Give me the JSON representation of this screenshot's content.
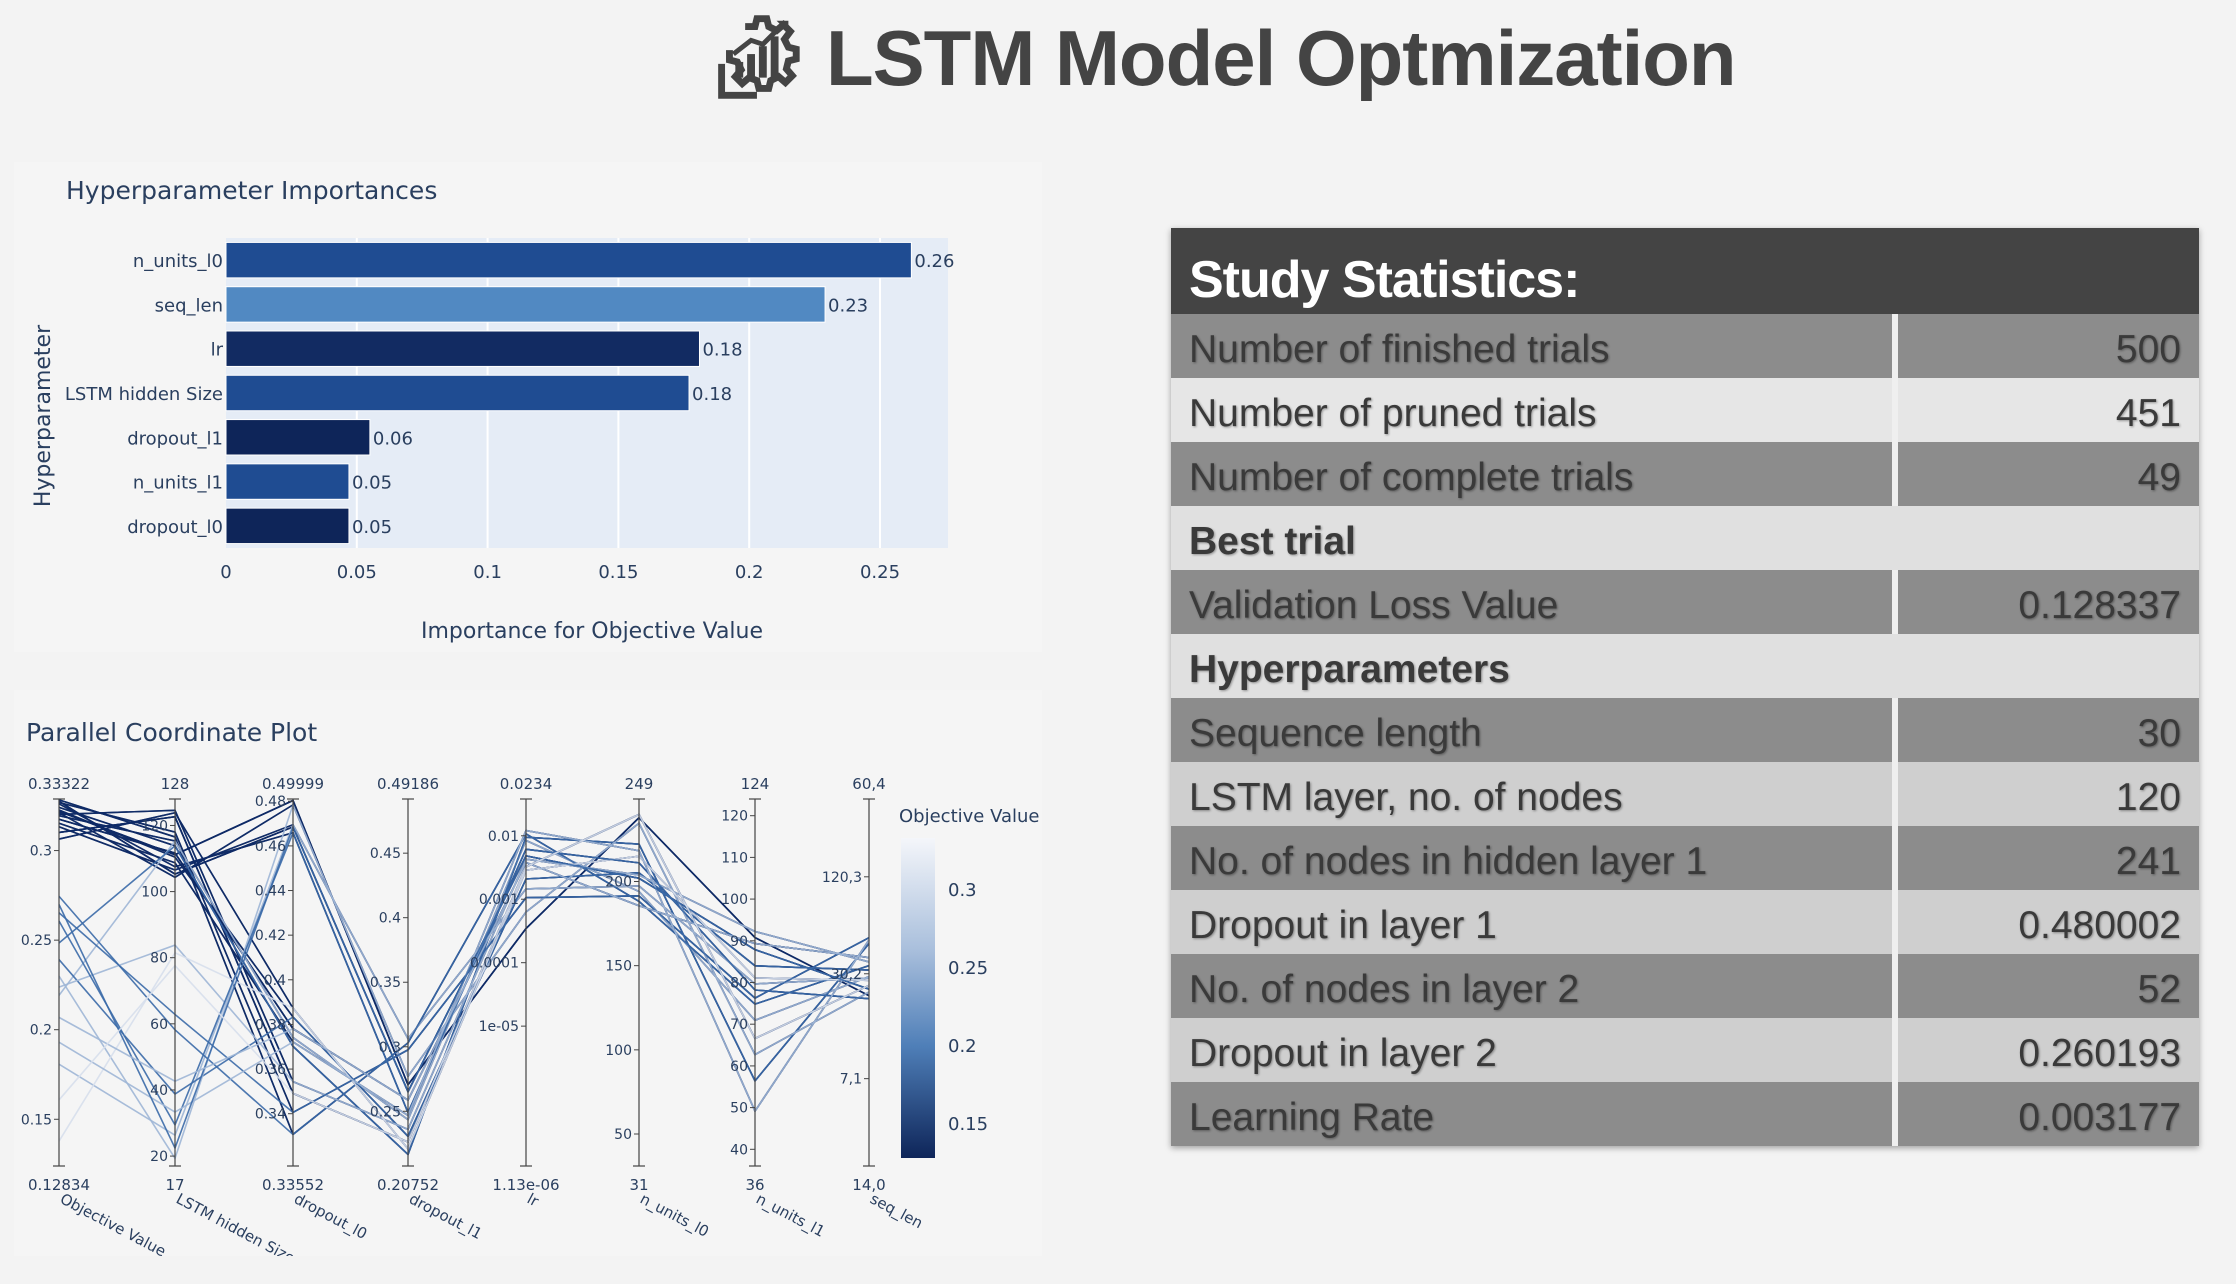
{
  "header": {
    "title": "LSTM Model Optmization",
    "logo_icon": "gear-chart-icon"
  },
  "chart_data": [
    {
      "type": "bar",
      "orientation": "horizontal",
      "title": "Hyperparameter Importances",
      "xlabel": "Importance for Objective Value",
      "ylabel": "Hyperparameter",
      "xlim": [
        0,
        0.276
      ],
      "xticks": [
        0,
        0.05,
        0.1,
        0.15,
        0.2,
        0.25
      ],
      "xtick_labels": [
        "0",
        "0.05",
        "0.1",
        "0.15",
        "0.2",
        "0.25"
      ],
      "categories": [
        "n_units_l0",
        "seq_len",
        "lr",
        "LSTM hidden Size",
        "dropout_l1",
        "n_units_l1",
        "dropout_l0"
      ],
      "values": [
        0.262,
        0.229,
        0.181,
        0.177,
        0.055,
        0.047,
        0.047
      ],
      "value_labels": [
        "0.26",
        "0.23",
        "0.18",
        "0.18",
        "0.06",
        "0.05",
        "0.05"
      ],
      "colors": [
        "#1f4c92",
        "#5189c2",
        "#122b62",
        "#1f4c92",
        "#0e2559",
        "#1f4c92",
        "#0e2559"
      ],
      "grid": true
    },
    {
      "type": "parallel_coordinates",
      "title": "Parallel Coordinate Plot",
      "colorbar_title": "Objective Value",
      "colorbar_ticks": [
        "0.3",
        "0.25",
        "0.2",
        "0.15"
      ],
      "colorbar_range": [
        0.12834,
        0.33322
      ],
      "axes": [
        {
          "name": "Objective Value",
          "top": "0.33322",
          "bottom": "0.12834",
          "ticks": [
            "0.3",
            "0.25",
            "0.2",
            "0.15"
          ]
        },
        {
          "name": "LSTM hidden Size",
          "top": "128",
          "bottom": "17",
          "ticks": [
            "120",
            "100",
            "80",
            "60",
            "40",
            "20"
          ]
        },
        {
          "name": "dropout_l0",
          "top": "0.49999",
          "bottom": "0.33552",
          "ticks": [
            "0.48",
            "0.46",
            "0.44",
            "0.42",
            "0.4",
            "0.38",
            "0.36",
            "0.34"
          ]
        },
        {
          "name": "dropout_l1",
          "top": "0.49186",
          "bottom": "0.20752",
          "ticks": [
            "0.45",
            "0.4",
            "0.35",
            "0.3",
            "0.25"
          ]
        },
        {
          "name": "lr",
          "top": "0.0234",
          "bottom": "1.13e-06",
          "ticks": [
            "0.01",
            "0.001",
            "0.0001",
            "1e-05"
          ]
        },
        {
          "name": "n_units_l0",
          "top": "249",
          "bottom": "31",
          "ticks": [
            "200",
            "150",
            "100",
            "50"
          ]
        },
        {
          "name": "n_units_l1",
          "top": "124",
          "bottom": "36",
          "ticks": [
            "120",
            "110",
            "100",
            "90",
            "80",
            "70",
            "60",
            "50",
            "40"
          ]
        },
        {
          "name": "seq_len",
          "top": "60,4",
          "bottom": "14,0",
          "ticks": [
            "120,3",
            "30,2",
            "7,1"
          ]
        }
      ]
    }
  ],
  "stats": {
    "title": "Study Statistics:",
    "rows": [
      {
        "label": "Number of finished trials",
        "value": "500"
      },
      {
        "label": "Number of pruned trials",
        "value": "451"
      },
      {
        "label": "Number of complete trials",
        "value": "49"
      },
      {
        "label": "Best trial",
        "value": ""
      },
      {
        "label": "Validation Loss Value",
        "value": "0.128337"
      },
      {
        "label": "Hyperparameters",
        "value": ""
      },
      {
        "label": "Sequence length",
        "value": "30"
      },
      {
        "label": "LSTM layer, no. of nodes",
        "value": "120"
      },
      {
        "label": "No. of nodes in hidden layer 1",
        "value": "241"
      },
      {
        "label": "Dropout in layer 1",
        "value": "0.480002"
      },
      {
        "label": "No. of nodes in layer 2",
        "value": "52"
      },
      {
        "label": "Dropout in layer 2",
        "value": "0.260193"
      },
      {
        "label": "Learning Rate",
        "value": "0.003177"
      }
    ]
  }
}
